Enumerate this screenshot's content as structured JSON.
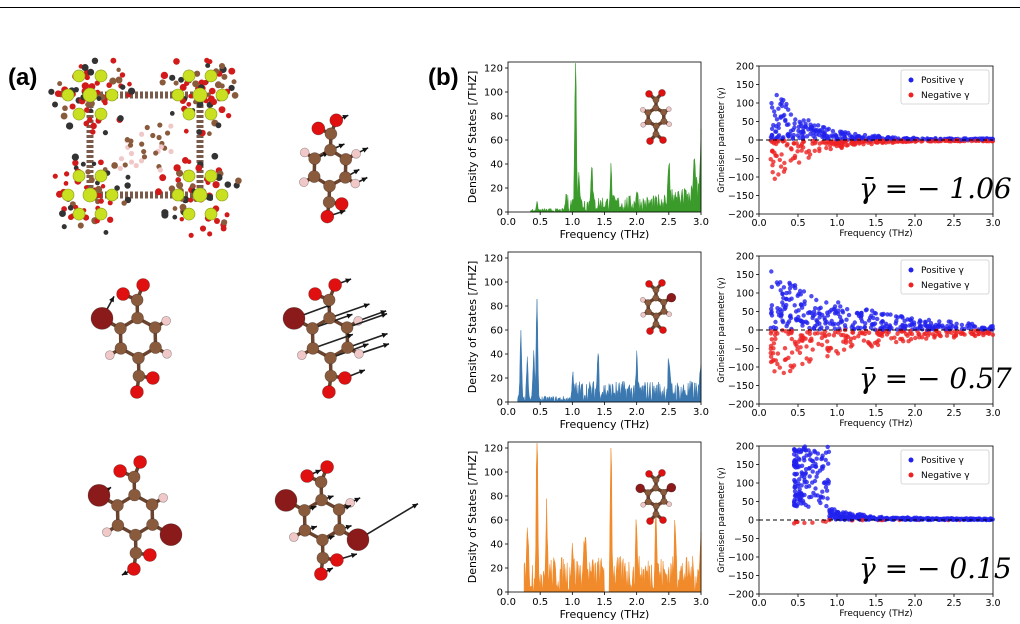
{
  "panels": {
    "a": "(a)",
    "b": "(b)"
  },
  "dos_ylabel": "Density of States [/THZ]",
  "gr_ylabel": "Grüneisen parameter (γ)",
  "xlabel": "Frequency (THz)",
  "legend": {
    "pos": "Positive γ",
    "neg": "Negative γ"
  },
  "colors": {
    "green": "#3a9a2a",
    "blue": "#3b78b0",
    "orange": "#f08a2a",
    "pos": "#2222ee",
    "neg": "#ee2222"
  },
  "chart_data": [
    {
      "type": "area",
      "series": [
        {
          "name": "",
          "values": []
        }
      ],
      "title": "",
      "xlabel": "Frequency (THz)",
      "ylabel": "Density of States [/THZ]",
      "xlim": [
        0,
        3
      ],
      "ylim": [
        0,
        125
      ],
      "peaks": [
        [
          0.45,
          6
        ],
        [
          0.9,
          8
        ],
        [
          1.05,
          125
        ],
        [
          1.1,
          30
        ],
        [
          1.3,
          35
        ],
        [
          1.6,
          28
        ],
        [
          2.0,
          12
        ],
        [
          2.5,
          35
        ],
        [
          2.9,
          30
        ],
        [
          3.0,
          48
        ]
      ]
    },
    {
      "type": "scatter",
      "title": "",
      "xlabel": "Frequency (THz)",
      "ylabel": "Grüneisen parameter (γ)",
      "xlim": [
        0,
        3
      ],
      "ylim": [
        -200,
        200
      ],
      "legend": "top-right",
      "annotation": "γ̄ = − 1.06",
      "mean": -1.06
    },
    {
      "type": "area",
      "title": "",
      "xlabel": "Frequency (THz)",
      "ylabel": "Density of States [/THZ]",
      "xlim": [
        0,
        3
      ],
      "ylim": [
        0,
        125
      ],
      "peaks": [
        [
          0.2,
          55
        ],
        [
          0.3,
          35
        ],
        [
          0.4,
          38
        ],
        [
          0.45,
          82
        ],
        [
          1.0,
          12
        ],
        [
          1.4,
          32
        ],
        [
          2.0,
          25
        ],
        [
          2.5,
          28
        ],
        [
          3.0,
          20
        ]
      ]
    },
    {
      "type": "scatter",
      "title": "",
      "xlabel": "Frequency (THz)",
      "ylabel": "Grüneisen parameter (γ)",
      "xlim": [
        0,
        3
      ],
      "ylim": [
        -200,
        200
      ],
      "legend": "top-right",
      "annotation": "γ̄ = − 0.57",
      "mean": -0.57
    },
    {
      "type": "area",
      "title": "",
      "xlabel": "Frequency (THz)",
      "ylabel": "Density of States [/THZ]",
      "xlim": [
        0,
        3
      ],
      "ylim": [
        0,
        125
      ],
      "peaks": [
        [
          0.3,
          45
        ],
        [
          0.45,
          115
        ],
        [
          0.6,
          50
        ],
        [
          1.0,
          30
        ],
        [
          1.2,
          45
        ],
        [
          1.5,
          15
        ],
        [
          1.6,
          115
        ],
        [
          2.0,
          45
        ],
        [
          2.3,
          55
        ],
        [
          2.6,
          50
        ],
        [
          3.0,
          30
        ]
      ]
    },
    {
      "type": "scatter",
      "title": "",
      "xlabel": "Frequency (THz)",
      "ylabel": "Grüneisen parameter (γ)",
      "xlim": [
        0,
        3
      ],
      "ylim": [
        -200,
        200
      ],
      "legend": "top-right",
      "annotation": "γ̄ = − 0.15",
      "mean": -0.15
    }
  ],
  "dos_xticks": [
    "0.0",
    "0.5",
    "1.0",
    "1.5",
    "2.0",
    "2.5",
    "3.0"
  ],
  "dos_yticks": [
    "0",
    "20",
    "40",
    "60",
    "80",
    "100",
    "120"
  ],
  "gr_yticks": [
    "200",
    "150",
    "100",
    "50",
    "0",
    "−50",
    "−100",
    "−150",
    "−200"
  ]
}
